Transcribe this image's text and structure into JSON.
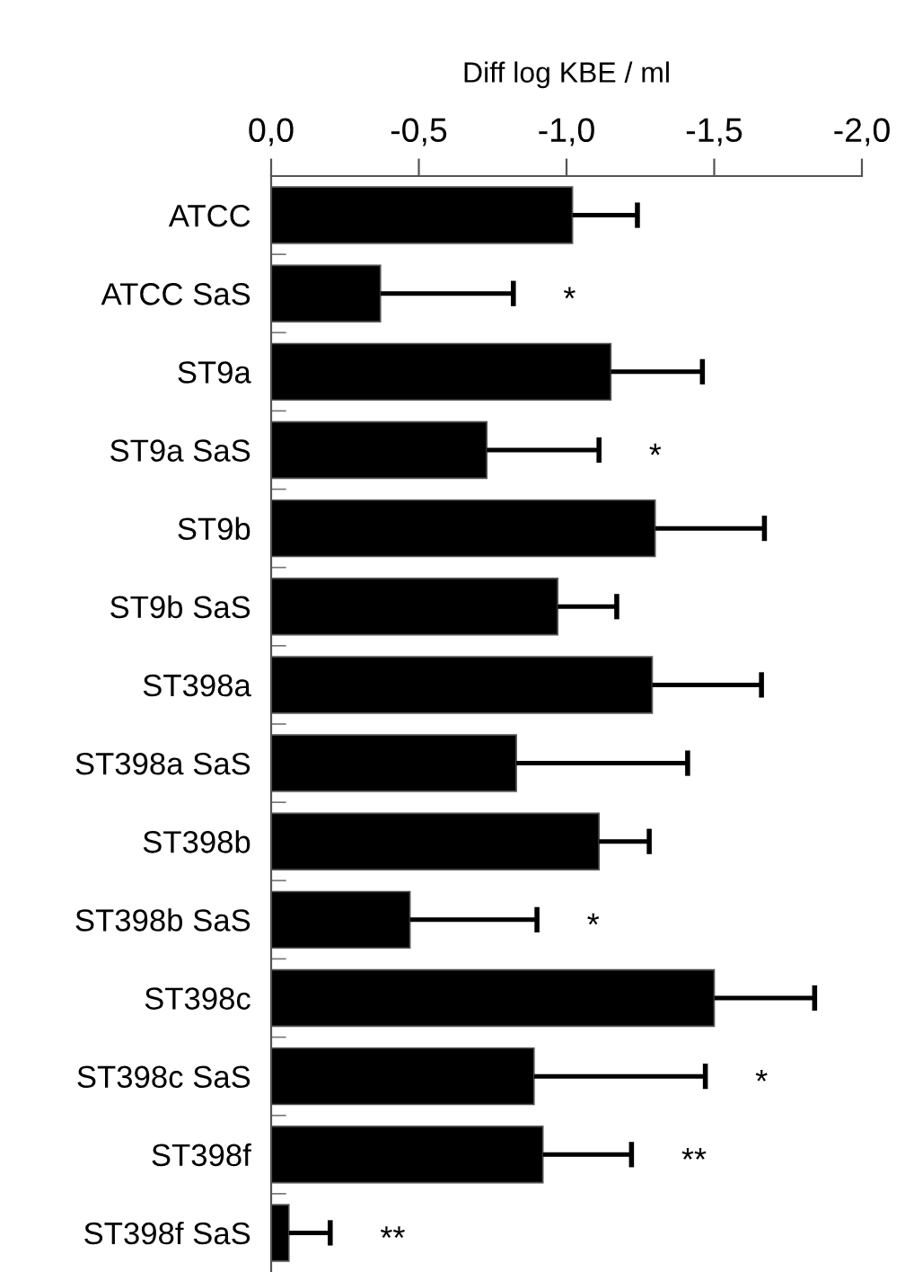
{
  "chart_data": {
    "type": "bar",
    "orientation": "horizontal",
    "xlabel": "Diff log KBE / ml",
    "categories": [
      "ATCC",
      "ATCC SaS",
      "ST9a",
      "ST9a SaS",
      "ST9b",
      "ST9b SaS",
      "ST398a",
      "ST398a SaS",
      "ST398b",
      "ST398b SaS",
      "ST398c",
      "ST398c SaS",
      "ST398f",
      "ST398f SaS"
    ],
    "values": [
      -1.02,
      -0.37,
      -1.15,
      -0.73,
      -1.3,
      -0.97,
      -1.29,
      -0.83,
      -1.11,
      -0.47,
      -1.5,
      -0.89,
      -0.92,
      -0.06
    ],
    "errors": [
      [
        -1.24,
        -1.02
      ],
      [
        -0.82,
        -0.37
      ],
      [
        -1.46,
        -1.15
      ],
      [
        -1.11,
        -0.73
      ],
      [
        -1.67,
        -1.3
      ],
      [
        -1.17,
        -0.97
      ],
      [
        -1.66,
        -1.29
      ],
      [
        -1.41,
        -0.83
      ],
      [
        -1.28,
        -1.11
      ],
      [
        -0.9,
        -0.47
      ],
      [
        -1.84,
        -1.5
      ],
      [
        -1.47,
        -0.89
      ],
      [
        -1.22,
        -0.92
      ],
      [
        -0.2,
        -0.06
      ]
    ],
    "annotations": [
      {
        "text": "*",
        "x": -0.82,
        "y": "ATCC SaS"
      },
      {
        "text": "*",
        "x": -1.11,
        "y": "ST9a SaS"
      },
      {
        "text": "*",
        "x": -0.9,
        "y": "ST398b SaS"
      },
      {
        "text": "*",
        "x": -1.47,
        "y": "ST398c SaS"
      },
      {
        "text": "**",
        "x": -1.22,
        "y": "ST398f"
      },
      {
        "text": "**",
        "x": -0.2,
        "y": "ST398f SaS"
      }
    ],
    "color": "#000000",
    "xlim": [
      0,
      -2.0
    ],
    "xticks": [
      {
        "value": 0,
        "label": "0,0"
      },
      {
        "value": -0.5,
        "label": "-0,5"
      },
      {
        "value": -1.0,
        "label": "-1,0"
      },
      {
        "value": -1.5,
        "label": "-1,5"
      },
      {
        "value": -2.0,
        "label": "-2,0"
      }
    ],
    "grid": false,
    "legend": false
  }
}
